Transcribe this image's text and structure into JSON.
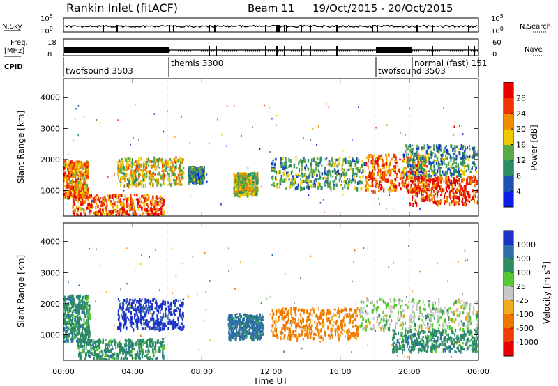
{
  "header": {
    "station": "Rankin Inlet (fitACF)",
    "beam": "Beam 11",
    "date_range": "19/Oct/2015 - 20/Oct/2015"
  },
  "aux_panels": {
    "nsky_label": "N.Sky",
    "nsky_ticks": [
      "10^5",
      "10^0"
    ],
    "nsearch_label": "N.Search",
    "nsearch_ticks": [
      "10^5",
      "10^0"
    ],
    "freq_label_1": "Freq.",
    "freq_label_2": "[MHz]",
    "freq_ticks": [
      "18",
      "8"
    ],
    "nave_label": "Nave",
    "nave_ticks": [
      "60",
      "0"
    ],
    "cpid_label": "CPID",
    "cpid_segments": [
      {
        "name": "twofsound 3503",
        "start": 0.0
      },
      {
        "name": "themis 3300",
        "start": 6.0
      },
      {
        "name": "twofsound 3503",
        "start": 18.0
      },
      {
        "name": "normal (fast) 151",
        "start": 20.0
      }
    ]
  },
  "colorbars": {
    "power": {
      "label": "Power [dB]",
      "ticks": [
        "28",
        "24",
        "20",
        "16",
        "12",
        "8",
        "4"
      ],
      "colors": [
        "#0a1ee6",
        "#1e50b4",
        "#2d8c64",
        "#58aa46",
        "#f0c800",
        "#f08c00",
        "#f03200",
        "#e60000"
      ]
    },
    "velocity": {
      "label": "Velocity [m s^-1]",
      "ticks": [
        "1000",
        "500",
        "100",
        "25",
        "-25",
        "-100",
        "-500",
        "-1000"
      ],
      "colors": [
        "#1e32c8",
        "#2d6eaa",
        "#2d8c64",
        "#58c832",
        "#c8c8c8",
        "#f0aa1e",
        "#f07800",
        "#f03c00",
        "#e60000"
      ]
    }
  },
  "chart_data": [
    {
      "type": "heatmap",
      "panel": "power",
      "title": "",
      "xlabel": "",
      "ylabel": "Slant Range [km]",
      "xlim": [
        0,
        24
      ],
      "ylim": [
        180,
        4600
      ],
      "yticks": [
        1000,
        2000,
        3000,
        4000
      ],
      "ytick_labels": [
        "1000",
        "2000",
        "3000",
        "4000"
      ],
      "colorbar": "Power [dB]",
      "regions": [
        {
          "t0": 0.0,
          "t1": 1.4,
          "r0": 800,
          "r1": 2000,
          "value": 22
        },
        {
          "t0": 0.5,
          "t1": 5.8,
          "r0": 230,
          "r1": 900,
          "value": 25
        },
        {
          "t0": 3.1,
          "t1": 6.9,
          "r0": 1200,
          "r1": 2100,
          "value": 18
        },
        {
          "t0": 7.2,
          "t1": 8.1,
          "r0": 1300,
          "r1": 1800,
          "value": 10
        },
        {
          "t0": 9.8,
          "t1": 11.2,
          "r0": 900,
          "r1": 1600,
          "value": 16
        },
        {
          "t0": 12.0,
          "t1": 17.4,
          "r0": 1100,
          "r1": 2100,
          "value": 12
        },
        {
          "t0": 17.4,
          "t1": 21.0,
          "r0": 1000,
          "r1": 2200,
          "value": 24
        },
        {
          "t0": 20.0,
          "t1": 24.0,
          "r0": 600,
          "r1": 1500,
          "value": 28
        },
        {
          "t0": 19.6,
          "t1": 24.0,
          "r0": 1500,
          "r1": 2500,
          "value": 10
        }
      ]
    },
    {
      "type": "heatmap",
      "panel": "velocity",
      "title": "",
      "xlabel": "Time UT",
      "ylabel": "Slant Range [km]",
      "xlim": [
        0,
        24
      ],
      "ylim": [
        180,
        4600
      ],
      "yticks": [
        1000,
        2000,
        3000,
        4000
      ],
      "ytick_labels": [
        "1000",
        "2000",
        "3000",
        "4000"
      ],
      "xticks": [
        0,
        4,
        8,
        12,
        16,
        20,
        24
      ],
      "xtick_labels": [
        "00:00",
        "04:00",
        "08:00",
        "12:00",
        "16:00",
        "20:00",
        "00:00"
      ],
      "colorbar": "Velocity [m s^-1]",
      "regions": [
        {
          "t0": 0.0,
          "t1": 1.5,
          "r0": 800,
          "r1": 2300,
          "value": 60
        },
        {
          "t0": 0.8,
          "t1": 5.8,
          "r0": 230,
          "r1": 900,
          "value": 60
        },
        {
          "t0": 3.1,
          "t1": 6.9,
          "r0": 1200,
          "r1": 2200,
          "value": 800
        },
        {
          "t0": 9.5,
          "t1": 11.5,
          "r0": 900,
          "r1": 1700,
          "value": 150
        },
        {
          "t0": 12.0,
          "t1": 17.0,
          "r0": 900,
          "r1": 1900,
          "value": -150
        },
        {
          "t0": 17.0,
          "t1": 24.0,
          "r0": 1200,
          "r1": 2200,
          "value": 0
        },
        {
          "t0": 19.0,
          "t1": 24.0,
          "r0": 500,
          "r1": 1200,
          "value": 60
        }
      ]
    }
  ]
}
